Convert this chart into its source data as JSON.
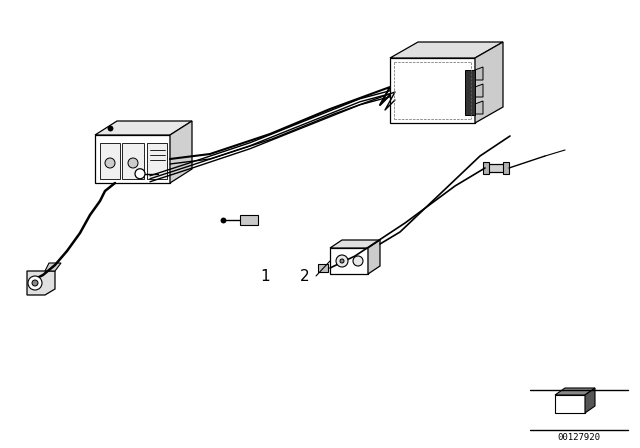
{
  "bg_color": "#ffffff",
  "line_color": "#000000",
  "label1": "1",
  "label2": "2",
  "part_number": "00127920",
  "figsize": [
    6.4,
    4.48
  ],
  "dpi": 100
}
